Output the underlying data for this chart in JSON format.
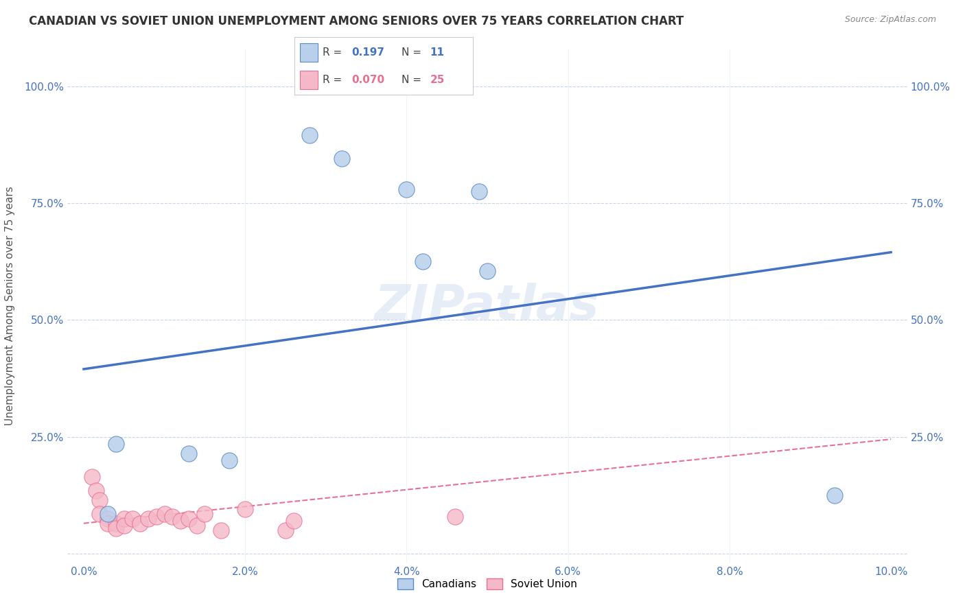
{
  "title": "CANADIAN VS SOVIET UNION UNEMPLOYMENT AMONG SENIORS OVER 75 YEARS CORRELATION CHART",
  "source": "Source: ZipAtlas.com",
  "ylabel": "Unemployment Among Seniors over 75 years",
  "xlim": [
    -0.002,
    0.102
  ],
  "ylim": [
    -0.02,
    1.08
  ],
  "xticks": [
    0.0,
    0.02,
    0.04,
    0.06,
    0.08,
    0.1
  ],
  "xticklabels": [
    "0.0%",
    "2.0%",
    "4.0%",
    "6.0%",
    "8.0%",
    "10.0%"
  ],
  "yticks": [
    0.0,
    0.25,
    0.5,
    0.75,
    1.0
  ],
  "yticklabels": [
    "",
    "25.0%",
    "50.0%",
    "75.0%",
    "100.0%"
  ],
  "canadians_x": [
    0.028,
    0.032,
    0.04,
    0.049,
    0.042,
    0.05,
    0.004,
    0.013,
    0.018,
    0.093,
    0.003
  ],
  "canadians_y": [
    0.895,
    0.845,
    0.78,
    0.775,
    0.625,
    0.605,
    0.235,
    0.215,
    0.2,
    0.125,
    0.085
  ],
  "soviet_x": [
    0.001,
    0.0015,
    0.002,
    0.002,
    0.003,
    0.003,
    0.004,
    0.004,
    0.005,
    0.005,
    0.006,
    0.007,
    0.008,
    0.009,
    0.01,
    0.011,
    0.012,
    0.013,
    0.014,
    0.015,
    0.017,
    0.02,
    0.025,
    0.026,
    0.046
  ],
  "soviet_y": [
    0.165,
    0.135,
    0.115,
    0.085,
    0.075,
    0.065,
    0.065,
    0.055,
    0.075,
    0.06,
    0.075,
    0.065,
    0.075,
    0.08,
    0.085,
    0.08,
    0.07,
    0.075,
    0.06,
    0.085,
    0.05,
    0.095,
    0.05,
    0.07,
    0.08
  ],
  "blue_regression_x0": 0.0,
  "blue_regression_y0": 0.395,
  "blue_regression_x1": 0.1,
  "blue_regression_y1": 0.645,
  "pink_regression_x0": 0.0,
  "pink_regression_y0": 0.065,
  "pink_regression_x1": 0.1,
  "pink_regression_y1": 0.245,
  "R_canadians": 0.197,
  "N_canadians": 11,
  "R_soviet": 0.07,
  "N_soviet": 25,
  "blue_fill_color": "#b8d0ec",
  "blue_edge_color": "#5b8ac7",
  "blue_line_color": "#4472c4",
  "pink_fill_color": "#f5b8c8",
  "pink_edge_color": "#e87090",
  "pink_line_color": "#e87090",
  "watermark": "ZIPatlas",
  "background_color": "#ffffff",
  "grid_color": "#c8d4e8",
  "title_color": "#333333",
  "source_color": "#888888",
  "tick_color": "#4472c4"
}
